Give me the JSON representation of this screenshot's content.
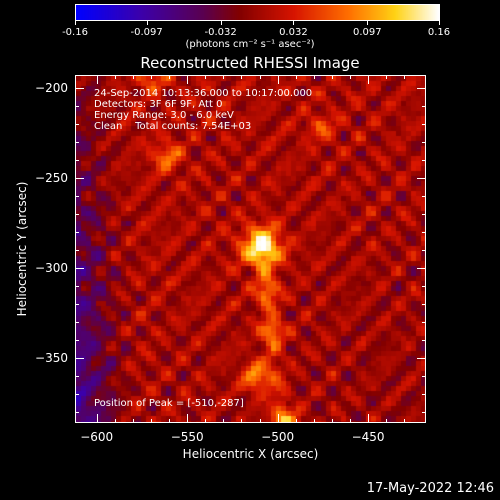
{
  "colorbar": {
    "min": -0.16,
    "max": 0.16,
    "tick_labels": [
      "-0.16",
      "-0.097",
      "-0.032",
      "0.032",
      "0.097",
      "0.16"
    ],
    "tick_values": [
      -0.16,
      -0.097,
      -0.032,
      0.032,
      0.097,
      0.16
    ],
    "units": "(photons cm⁻² s⁻¹ asec⁻²)"
  },
  "title": "Reconstructed RHESSI Image",
  "annotations": {
    "time_range": "24-Sep-2014 10:13:36.000 to 10:17:00.000",
    "detectors": "Detectors: 3F 6F 9F, Att 0",
    "energy": "Energy Range: 3.0 - 6.0 keV",
    "clean": "Clean    Total counts: 7.54E+03",
    "peak": "Position of Peak = [-510,-287]"
  },
  "chart_data": {
    "type": "heatmap",
    "title": "Reconstructed RHESSI Image",
    "xlabel": "Heliocentric X (arcsec)",
    "ylabel": "Heliocentric Y (arcsec)",
    "xlim": [
      -612,
      -418
    ],
    "ylim": [
      -386,
      -193
    ],
    "x_ticks": [
      -600,
      -550,
      -500,
      -450
    ],
    "y_ticks": [
      -200,
      -250,
      -300,
      -350
    ],
    "x_tick_labels": [
      "−600",
      "−550",
      "−500",
      "−450"
    ],
    "y_tick_labels": [
      "−200",
      "−250",
      "−300",
      "−350"
    ],
    "peak": {
      "x": -510,
      "y": -287
    },
    "colormap": "red-temperature"
  },
  "timestamp": "17-May-2022 12:46"
}
